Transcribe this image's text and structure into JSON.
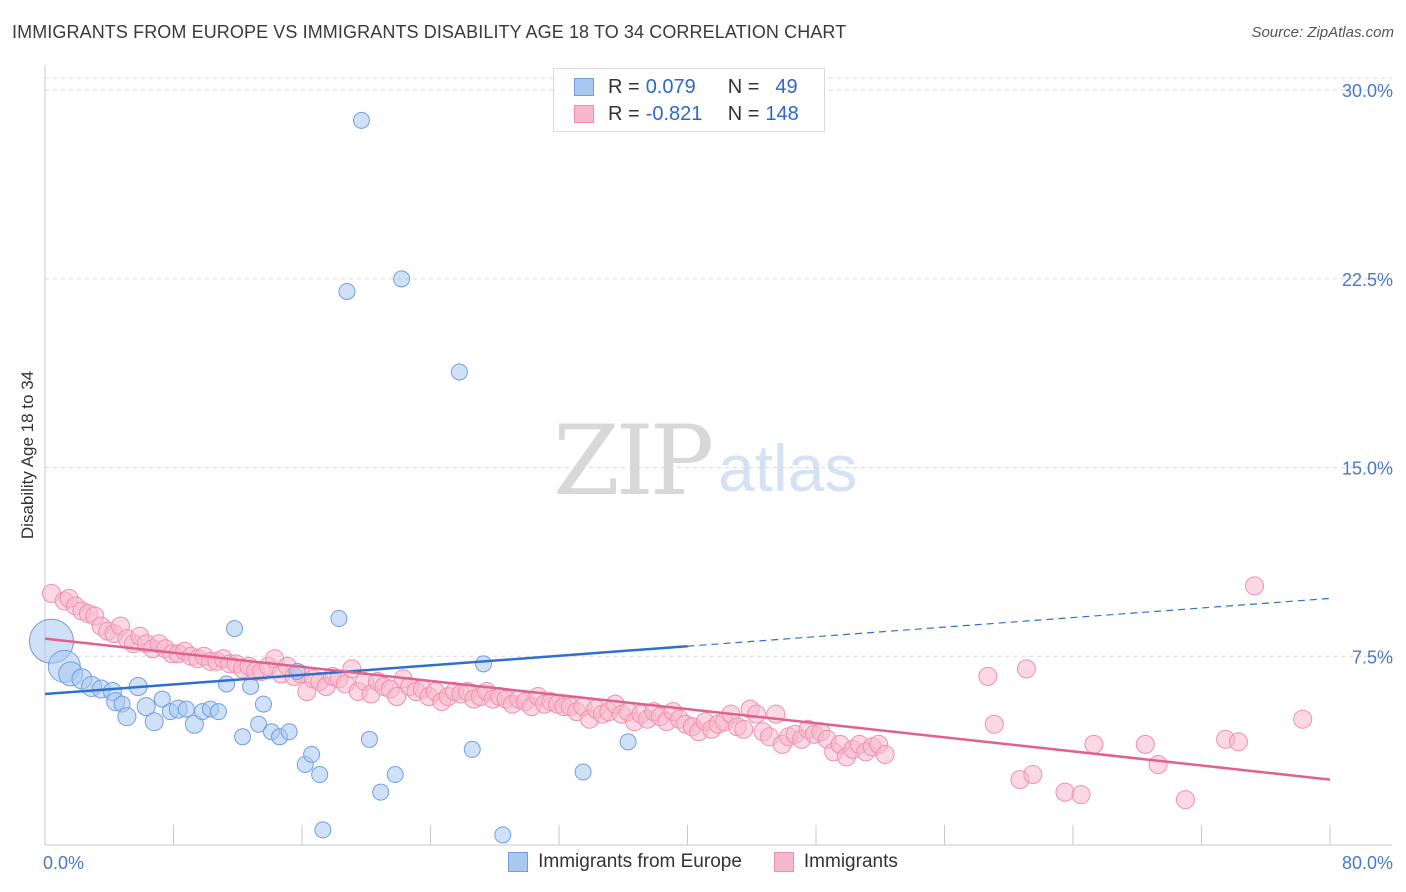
{
  "title": "IMMIGRANTS FROM EUROPE VS IMMIGRANTS DISABILITY AGE 18 TO 34 CORRELATION CHART",
  "source": "Source: ZipAtlas.com",
  "watermark": {
    "zip": "ZIP",
    "atlas": "atlas"
  },
  "legend": {
    "series1": {
      "r_label": "R =",
      "r_value": "0.079",
      "n_label": "N =",
      "n_value": "49"
    },
    "series2": {
      "r_label": "R =",
      "r_value": "-0.821",
      "n_label": "N =",
      "n_value": "148"
    }
  },
  "colors": {
    "europe_fill": "#a9c8f0",
    "europe_stroke": "#6f9fe0",
    "europe_line": "#2f6fd0",
    "immig_fill": "#f7b8cc",
    "immig_stroke": "#ee8fae",
    "immig_line": "#e0608f",
    "tick_text": "#4a78c8",
    "grid": "#d8d8d8"
  },
  "chart_data": {
    "type": "scatter",
    "title": "IMMIGRANTS FROM EUROPE VS IMMIGRANTS DISABILITY AGE 18 TO 34 CORRELATION CHART",
    "xlabel": "",
    "ylabel": "Disability Age 18 to 34",
    "xlim": [
      0,
      80
    ],
    "ylim": [
      0,
      31
    ],
    "x_tick_labels": [
      "0.0%",
      "80.0%"
    ],
    "y_ticks": [
      7.5,
      15.0,
      22.5,
      30.0
    ],
    "y_tick_labels": [
      "7.5%",
      "15.0%",
      "22.5%",
      "30.0%"
    ],
    "grid": "horizontal dashed",
    "legend_placement": "top-center",
    "series": [
      {
        "name": "Immigrants from Europe",
        "r": 0.079,
        "n": 49,
        "trend": {
          "x0": 0,
          "y0": 6.0,
          "x1": 40,
          "y1": 7.9,
          "dashed_to_x": 80,
          "dashed_to_y": 9.8
        },
        "points": [
          [
            0.4,
            8.1,
            22
          ],
          [
            1.2,
            7.1,
            16
          ],
          [
            1.6,
            6.8,
            12
          ],
          [
            2.3,
            6.6,
            10
          ],
          [
            2.9,
            6.3,
            10
          ],
          [
            3.5,
            6.2,
            9
          ],
          [
            4.2,
            6.1,
            9
          ],
          [
            4.4,
            5.7,
            9
          ],
          [
            4.8,
            5.6,
            8
          ],
          [
            5.1,
            5.1,
            9
          ],
          [
            5.8,
            6.3,
            9
          ],
          [
            6.3,
            5.5,
            9
          ],
          [
            6.8,
            4.9,
            9
          ],
          [
            7.3,
            5.8,
            8
          ],
          [
            7.8,
            5.3,
            8
          ],
          [
            8.3,
            5.4,
            9
          ],
          [
            8.8,
            5.4,
            8
          ],
          [
            9.3,
            4.8,
            9
          ],
          [
            9.8,
            5.3,
            8
          ],
          [
            10.3,
            5.4,
            8
          ],
          [
            10.8,
            5.3,
            8
          ],
          [
            11.3,
            6.4,
            8
          ],
          [
            11.8,
            8.6,
            8
          ],
          [
            12.3,
            4.3,
            8
          ],
          [
            12.8,
            6.3,
            8
          ],
          [
            13.3,
            4.8,
            8
          ],
          [
            13.6,
            5.6,
            8
          ],
          [
            14.1,
            4.5,
            8
          ],
          [
            14.6,
            4.3,
            8
          ],
          [
            15.2,
            4.5,
            8
          ],
          [
            15.7,
            6.9,
            8
          ],
          [
            16.2,
            3.2,
            8
          ],
          [
            16.6,
            3.6,
            8
          ],
          [
            17.1,
            2.8,
            8
          ],
          [
            17.3,
            0.6,
            8
          ],
          [
            18.3,
            9.0,
            8
          ],
          [
            18.8,
            22.0,
            8
          ],
          [
            19.7,
            28.8,
            8
          ],
          [
            20.2,
            4.2,
            8
          ],
          [
            20.9,
            2.1,
            8
          ],
          [
            21.8,
            2.8,
            8
          ],
          [
            22.2,
            22.5,
            8
          ],
          [
            25.8,
            18.8,
            8
          ],
          [
            26.6,
            3.8,
            8
          ],
          [
            27.3,
            7.2,
            8
          ],
          [
            28.5,
            0.4,
            8
          ],
          [
            33.5,
            2.9,
            8
          ],
          [
            36.3,
            4.1,
            8
          ]
        ]
      },
      {
        "name": "Immigrants",
        "r": -0.821,
        "n": 148,
        "trend": {
          "x0": 0,
          "y0": 8.2,
          "x1": 80,
          "y1": 2.6
        },
        "points": [
          [
            0.4,
            10.0
          ],
          [
            1.2,
            9.7
          ],
          [
            1.5,
            9.8
          ],
          [
            1.9,
            9.5
          ],
          [
            2.3,
            9.3
          ],
          [
            2.7,
            9.2
          ],
          [
            3.1,
            9.1
          ],
          [
            3.5,
            8.7
          ],
          [
            3.9,
            8.5
          ],
          [
            4.3,
            8.4
          ],
          [
            4.7,
            8.7
          ],
          [
            5.1,
            8.2
          ],
          [
            5.5,
            8.0
          ],
          [
            5.9,
            8.3
          ],
          [
            6.3,
            8.0
          ],
          [
            6.7,
            7.8
          ],
          [
            7.1,
            8.0
          ],
          [
            7.5,
            7.8
          ],
          [
            7.9,
            7.6
          ],
          [
            8.3,
            7.6
          ],
          [
            8.7,
            7.7
          ],
          [
            9.1,
            7.5
          ],
          [
            9.5,
            7.4
          ],
          [
            9.9,
            7.5
          ],
          [
            10.3,
            7.3
          ],
          [
            10.7,
            7.3
          ],
          [
            11.1,
            7.4
          ],
          [
            11.5,
            7.2
          ],
          [
            11.9,
            7.2
          ],
          [
            12.3,
            7.0
          ],
          [
            12.7,
            7.1
          ],
          [
            13.1,
            6.9
          ],
          [
            13.5,
            6.9
          ],
          [
            13.9,
            7.1
          ],
          [
            14.3,
            7.4
          ],
          [
            14.7,
            6.8
          ],
          [
            15.1,
            7.1
          ],
          [
            15.5,
            6.7
          ],
          [
            15.9,
            6.8
          ],
          [
            16.3,
            6.1
          ],
          [
            16.7,
            6.6
          ],
          [
            17.1,
            6.5
          ],
          [
            17.5,
            6.3
          ],
          [
            17.9,
            6.7
          ],
          [
            18.3,
            6.6
          ],
          [
            18.7,
            6.4
          ],
          [
            19.1,
            7.0
          ],
          [
            19.5,
            6.1
          ],
          [
            19.9,
            6.5
          ],
          [
            20.3,
            6.0
          ],
          [
            20.7,
            6.5
          ],
          [
            21.1,
            6.3
          ],
          [
            21.5,
            6.2
          ],
          [
            21.9,
            5.9
          ],
          [
            22.3,
            6.6
          ],
          [
            22.7,
            6.3
          ],
          [
            23.1,
            6.1
          ],
          [
            23.5,
            6.2
          ],
          [
            23.9,
            5.9
          ],
          [
            24.3,
            6.1
          ],
          [
            24.7,
            5.7
          ],
          [
            25.1,
            5.9
          ],
          [
            25.5,
            6.1
          ],
          [
            25.9,
            6.0
          ],
          [
            26.3,
            6.1
          ],
          [
            26.7,
            5.8
          ],
          [
            27.1,
            5.9
          ],
          [
            27.5,
            6.1
          ],
          [
            27.9,
            5.8
          ],
          [
            28.3,
            5.9
          ],
          [
            28.7,
            5.8
          ],
          [
            29.1,
            5.6
          ],
          [
            29.5,
            5.8
          ],
          [
            29.9,
            5.7
          ],
          [
            30.3,
            5.5
          ],
          [
            30.7,
            5.9
          ],
          [
            31.1,
            5.6
          ],
          [
            31.5,
            5.7
          ],
          [
            31.9,
            5.6
          ],
          [
            32.3,
            5.5
          ],
          [
            32.7,
            5.5
          ],
          [
            33.1,
            5.3
          ],
          [
            33.5,
            5.5
          ],
          [
            33.9,
            5.0
          ],
          [
            34.3,
            5.4
          ],
          [
            34.7,
            5.2
          ],
          [
            35.1,
            5.3
          ],
          [
            35.5,
            5.6
          ],
          [
            35.9,
            5.2
          ],
          [
            36.3,
            5.3
          ],
          [
            36.7,
            4.9
          ],
          [
            37.1,
            5.2
          ],
          [
            37.5,
            5.0
          ],
          [
            37.9,
            5.3
          ],
          [
            38.3,
            5.1
          ],
          [
            38.7,
            4.9
          ],
          [
            39.1,
            5.3
          ],
          [
            39.5,
            5.0
          ],
          [
            39.9,
            4.8
          ],
          [
            40.3,
            4.7
          ],
          [
            40.7,
            4.5
          ],
          [
            41.1,
            4.9
          ],
          [
            41.5,
            4.6
          ],
          [
            41.9,
            4.8
          ],
          [
            42.3,
            4.9
          ],
          [
            42.7,
            5.2
          ],
          [
            43.1,
            4.7
          ],
          [
            43.5,
            4.6
          ],
          [
            43.9,
            5.4
          ],
          [
            44.3,
            5.2
          ],
          [
            44.7,
            4.5
          ],
          [
            45.1,
            4.3
          ],
          [
            45.5,
            5.2
          ],
          [
            45.9,
            4.0
          ],
          [
            46.3,
            4.3
          ],
          [
            46.7,
            4.4
          ],
          [
            47.1,
            4.2
          ],
          [
            47.5,
            4.6
          ],
          [
            47.9,
            4.4
          ],
          [
            48.3,
            4.5
          ],
          [
            48.7,
            4.2
          ],
          [
            49.1,
            3.7
          ],
          [
            49.5,
            4.0
          ],
          [
            49.9,
            3.5
          ],
          [
            50.3,
            3.8
          ],
          [
            50.7,
            4.0
          ],
          [
            51.1,
            3.7
          ],
          [
            51.5,
            3.9
          ],
          [
            51.9,
            4.0
          ],
          [
            52.3,
            3.6
          ],
          [
            58.7,
            6.7
          ],
          [
            59.1,
            4.8
          ],
          [
            60.7,
            2.6
          ],
          [
            61.1,
            7.0
          ],
          [
            61.5,
            2.8
          ],
          [
            63.5,
            2.1
          ],
          [
            64.5,
            2.0
          ],
          [
            65.3,
            4.0
          ],
          [
            68.5,
            4.0
          ],
          [
            69.3,
            3.2
          ],
          [
            71.0,
            1.8
          ],
          [
            73.5,
            4.2
          ],
          [
            74.3,
            4.1
          ],
          [
            75.3,
            10.3
          ],
          [
            78.3,
            5.0
          ]
        ]
      }
    ]
  },
  "x_tick_left": "0.0%",
  "x_tick_right": "80.0%",
  "bottom_legend": {
    "item1": "Immigrants from Europe",
    "item2": "Immigrants"
  }
}
